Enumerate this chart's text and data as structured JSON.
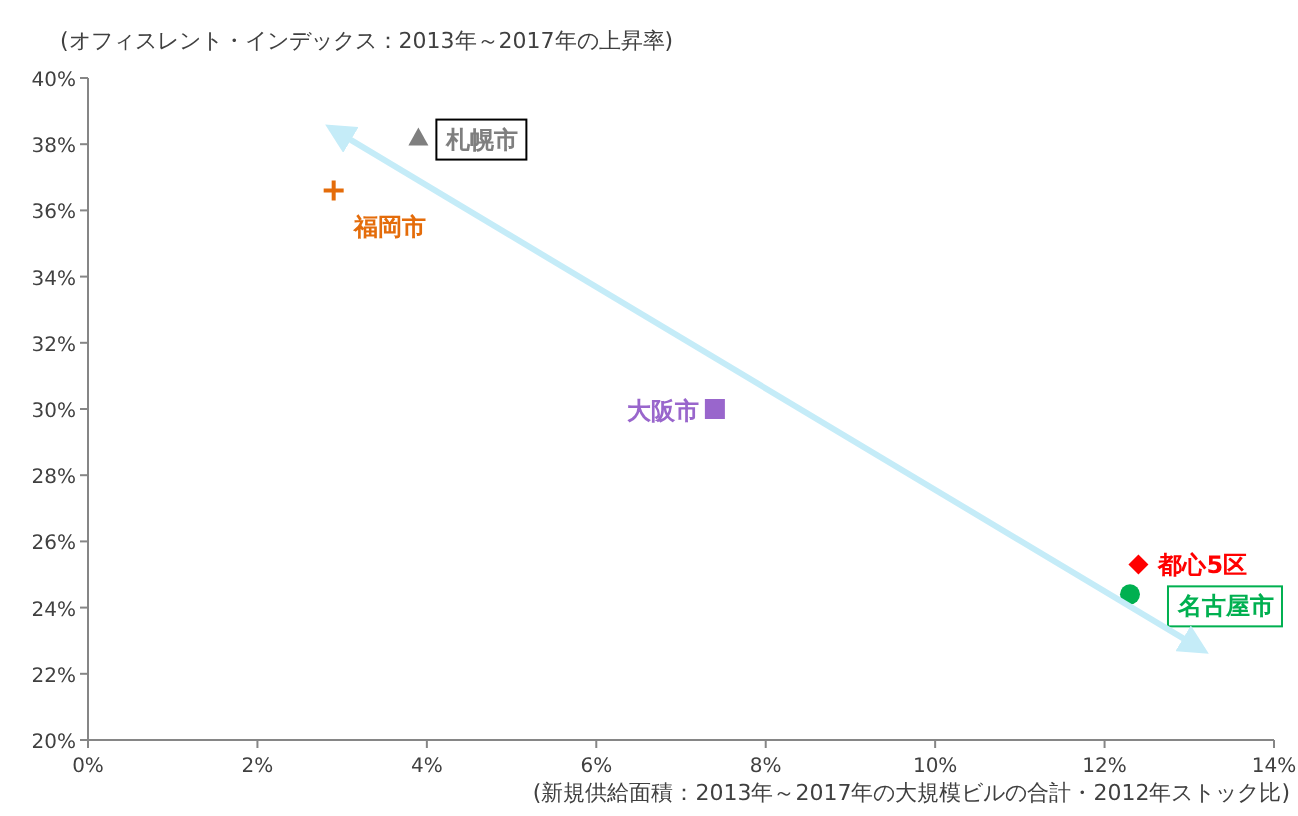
{
  "chart_data": {
    "type": "scatter",
    "ylabel": "(オフィスレント・インデックス：2013年～2017年の上昇率)",
    "xlabel": "(新規供給面積：2013年～2017年の大規模ビルの合計・2012年ストック比)",
    "xlim": [
      0,
      14
    ],
    "ylim": [
      20,
      40
    ],
    "xticks": [
      {
        "value": 0,
        "label": "0%"
      },
      {
        "value": 2,
        "label": "2%"
      },
      {
        "value": 4,
        "label": "4%"
      },
      {
        "value": 6,
        "label": "6%"
      },
      {
        "value": 8,
        "label": "8%"
      },
      {
        "value": 10,
        "label": "10%"
      },
      {
        "value": 12,
        "label": "12%"
      },
      {
        "value": 14,
        "label": "14%"
      }
    ],
    "yticks": [
      {
        "value": 20,
        "label": "20%"
      },
      {
        "value": 22,
        "label": "22%"
      },
      {
        "value": 24,
        "label": "24%"
      },
      {
        "value": 26,
        "label": "26%"
      },
      {
        "value": 28,
        "label": "28%"
      },
      {
        "value": 30,
        "label": "30%"
      },
      {
        "value": 32,
        "label": "32%"
      },
      {
        "value": 34,
        "label": "34%"
      },
      {
        "value": 36,
        "label": "36%"
      },
      {
        "value": 38,
        "label": "38%"
      },
      {
        "value": 40,
        "label": "40%"
      }
    ],
    "series": [
      {
        "name": "札幌市",
        "color": "#7f7f7f",
        "marker": "triangle",
        "x": [
          3.9
        ],
        "values": [
          38.2
        ]
      },
      {
        "name": "福岡市",
        "color": "#e46c0a",
        "marker": "cross",
        "x": [
          2.9
        ],
        "values": [
          36.6
        ]
      },
      {
        "name": "大阪市",
        "color": "#9966cc",
        "marker": "square",
        "x": [
          7.4
        ],
        "values": [
          30.0
        ]
      },
      {
        "name": "都心5区",
        "color": "#ff0000",
        "marker": "diamond",
        "x": [
          12.4
        ],
        "values": [
          25.3
        ]
      },
      {
        "name": "名古屋市",
        "color": "#00b050",
        "marker": "circle",
        "x": [
          12.3
        ],
        "values": [
          24.4
        ]
      },
      {
        "type": "line",
        "color": "#c5ecf8",
        "marker": "none",
        "x": [
          2.86,
          13.17
        ],
        "values": [
          38.5,
          22.7
        ]
      }
    ]
  }
}
